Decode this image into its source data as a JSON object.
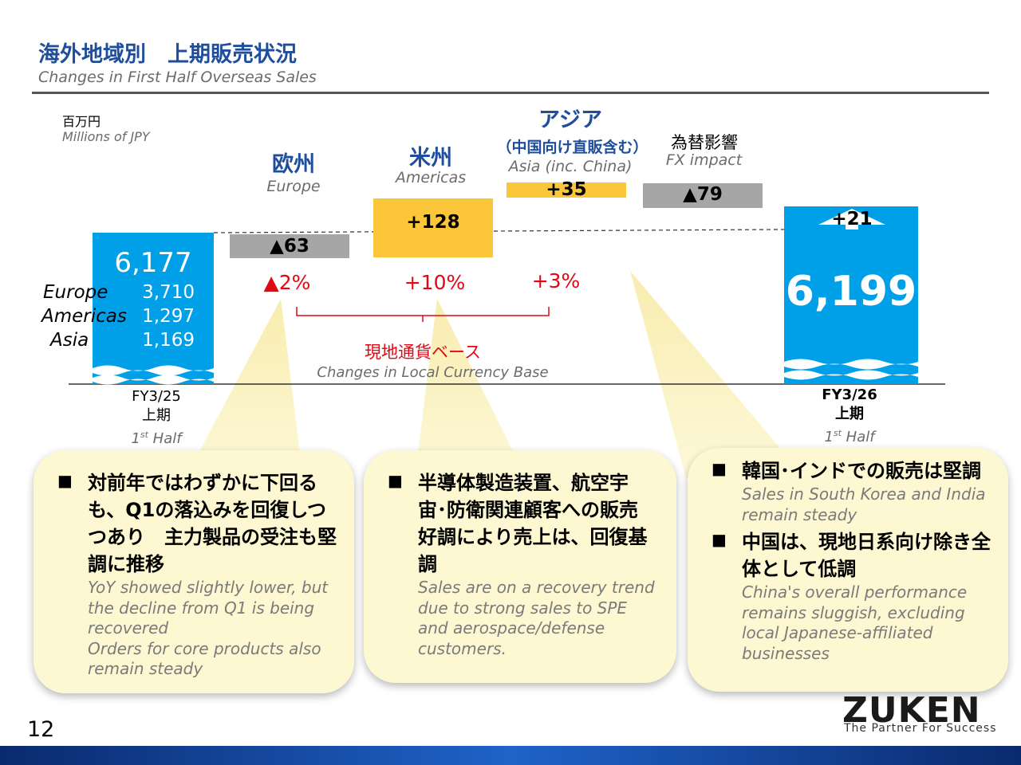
{
  "header": {
    "title_jp": "海外地域別　上期販売状況",
    "title_en": "Changes in First Half Overseas Sales"
  },
  "unit": {
    "jp": "百万円",
    "en": "Millions of JPY"
  },
  "chart_data": {
    "type": "waterfall",
    "unit": "Millions of JPY",
    "steps": [
      {
        "key": "start",
        "value": 6177,
        "label": "6,177",
        "kind": "total",
        "color": "#00a0e9"
      },
      {
        "key": "europe",
        "value": -63,
        "label": "▲63",
        "kind": "delta",
        "color": "#a6a6a6"
      },
      {
        "key": "americas",
        "value": 128,
        "label": "+128",
        "kind": "delta",
        "color": "#fbc639"
      },
      {
        "key": "asia",
        "value": 35,
        "label": "+35",
        "kind": "delta",
        "color": "#fbc639"
      },
      {
        "key": "fx",
        "value": -79,
        "label": "▲79",
        "kind": "delta",
        "color": "#a6a6a6"
      },
      {
        "key": "end",
        "value": 6199,
        "label": "6,199",
        "kind": "total",
        "color": "#00a0e9"
      }
    ],
    "categories": [
      {
        "jp": "欧州",
        "en": "Europe"
      },
      {
        "jp": "米州",
        "en": "Americas"
      },
      {
        "jp": "アジア",
        "sub_jp": "（中国向け直販含む）",
        "en": "Asia (inc. China)"
      },
      {
        "jp": "為替影響",
        "en": "FX impact"
      }
    ],
    "start_breakdown": [
      {
        "name": "Europe",
        "value": "3,710"
      },
      {
        "name": "Americas",
        "value": "1,297"
      },
      {
        "name": "Asia",
        "value": "1,169"
      }
    ],
    "local_currency_pct": [
      "▲2%",
      "+10%",
      "+3%"
    ],
    "local_currency_note": {
      "jp": "現地通貨ベース",
      "en": "Changes in Local Currency Base"
    },
    "end_increase_label": "+21",
    "periods": [
      {
        "jp": "FY3/25",
        "jp2": "上期",
        "en_sup": "st",
        "en_pre": "1",
        "en_post": " Half"
      },
      {
        "jp": "FY3/26",
        "jp2": "上期",
        "en_sup": "st",
        "en_pre": "1",
        "en_post": " Half"
      }
    ]
  },
  "callouts": [
    {
      "jp": "対前年ではわずかに下回るも、Q1の落込みを回復しつつあり　主力製品の受注も堅調に推移",
      "en": "YoY showed slightly lower, but the decline from Q1 is being recovered\nOrders for core products also remain steady"
    },
    {
      "jp": "半導体製造装置、航空宇宙･防衛関連顧客への販売好調により売上は、回復基調",
      "en": "Sales are on a recovery trend due to strong sales to SPE and aerospace/defense customers."
    },
    {
      "jp1": "韓国･インドでの販売は堅調",
      "en1": "Sales in South Korea and India remain steady",
      "jp2": "中国は、現地日系向け除き全体として低調",
      "en2": "China's overall performance remains sluggish, excluding local Japanese-affiliated businesses"
    }
  ],
  "footer": {
    "page_number": "12",
    "logo": "ZUKEN",
    "tagline": "The Partner For Success"
  },
  "bullet": "■"
}
